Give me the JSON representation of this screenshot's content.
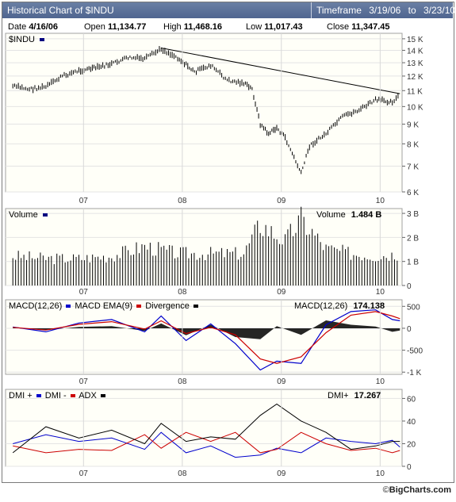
{
  "header": {
    "title": "Historical Chart of $INDU",
    "timeframe_label": "Timeframe",
    "timeframe_start": "3/19/06",
    "timeframe_to": "to",
    "timeframe_end": "3/23/10"
  },
  "info_row": {
    "date_label": "Date",
    "date": "4/16/06",
    "open_label": "Open",
    "open": "11,134.77",
    "high_label": "High",
    "high": "11,468.16",
    "low_label": "Low",
    "low": "11,017.43",
    "close_label": "Close",
    "close": "11,347.45"
  },
  "price_panel": {
    "symbol": "$INDU",
    "symbol_color": "#000080"
  },
  "volume_panel": {
    "label": "Volume",
    "value_label": "Volume",
    "value": "1.484 B"
  },
  "macd_panel": {
    "macd_label": "MACD(12,26)",
    "ema_label": "MACD EMA(9)",
    "div_label": "Divergence",
    "value_label": "MACD(12,26)",
    "value": "174.138"
  },
  "dmi_panel": {
    "plus_label": "DMI +",
    "minus_label": "DMI -",
    "adx_label": "ADX",
    "value_label": "DMI+",
    "value": "17.267"
  },
  "footer": {
    "copyright": "©",
    "brand": "BigCharts.com"
  },
  "colors": {
    "price": "#000000",
    "volume": "#000000",
    "macd": "#0000cc",
    "ema": "#cc0000",
    "divergence": "#000000",
    "dmi_plus": "#0000cc",
    "dmi_minus": "#cc0000",
    "adx": "#000000",
    "trendline": "#000000"
  },
  "chart_data": [
    {
      "type": "line",
      "title": "$INDU",
      "x_ticks": [
        "07",
        "08",
        "09",
        "10"
      ],
      "y_ticks": [
        "6 K",
        "7 K",
        "8 K",
        "9 K",
        "10 K",
        "11 K",
        "12 K",
        "13 K",
        "14 K",
        "15 K"
      ],
      "y_scale": "log",
      "ylim": [
        6000,
        15500
      ],
      "series": [
        {
          "x": [
            "2006-04",
            "2006-06",
            "2006-08",
            "2006-10",
            "2006-12",
            "2007-02",
            "2007-04",
            "2007-06",
            "2007-08",
            "2007-10",
            "2007-12",
            "2008-02",
            "2008-04",
            "2008-06",
            "2008-08",
            "2008-09",
            "2008-10",
            "2008-11",
            "2008-12",
            "2009-01",
            "2009-03",
            "2009-04",
            "2009-06",
            "2009-08",
            "2009-10",
            "2009-12",
            "2010-02",
            "2010-03"
          ],
          "values": [
            11300,
            11100,
            11250,
            12000,
            12400,
            12600,
            12900,
            13400,
            13300,
            14100,
            13400,
            12300,
            12800,
            11700,
            11500,
            11100,
            9000,
            8500,
            8800,
            8300,
            6700,
            7900,
            8500,
            9400,
            9800,
            10400,
            10300,
            10700
          ]
        }
      ],
      "trendline": {
        "from": [
          "2007-10",
          14200
        ],
        "to": [
          "2010-03",
          10800
        ]
      }
    },
    {
      "type": "bar",
      "title": "Volume",
      "x_ticks": [
        "07",
        "08",
        "09",
        "10"
      ],
      "y_ticks": [
        "0",
        "1 B",
        "2 B",
        "3 B"
      ],
      "ylim": [
        0,
        3.2
      ],
      "unit": "B",
      "x": [
        "2006-04",
        "2006-08",
        "2006-12",
        "2007-04",
        "2007-08",
        "2007-12",
        "2008-04",
        "2008-08",
        "2008-10",
        "2009-01",
        "2009-03",
        "2009-06",
        "2009-09",
        "2009-12",
        "2010-03"
      ],
      "values": [
        1.2,
        1.1,
        1.1,
        1.2,
        1.6,
        1.3,
        1.3,
        1.3,
        2.5,
        1.8,
        2.7,
        1.5,
        1.3,
        1.2,
        1.3
      ]
    },
    {
      "type": "line",
      "title": "MACD",
      "x_ticks": [
        "07",
        "08",
        "09",
        "10"
      ],
      "y_ticks": [
        "-1 K",
        "-500",
        "0",
        "500"
      ],
      "ylim": [
        -1050,
        650
      ],
      "x": [
        "2006-04",
        "2006-08",
        "2006-12",
        "2007-04",
        "2007-08",
        "2007-10",
        "2008-01",
        "2008-04",
        "2008-07",
        "2008-10",
        "2008-12",
        "2009-03",
        "2009-06",
        "2009-09",
        "2009-12",
        "2010-02",
        "2010-03"
      ],
      "series": [
        {
          "name": "MACD(12,26)",
          "values": [
            30,
            -80,
            120,
            200,
            -80,
            280,
            -280,
            100,
            -350,
            -950,
            -750,
            -800,
            80,
            380,
            420,
            200,
            170
          ]
        },
        {
          "name": "MACD EMA(9)",
          "values": [
            20,
            -40,
            90,
            150,
            -20,
            170,
            -120,
            20,
            -150,
            -700,
            -800,
            -650,
            -100,
            300,
            380,
            280,
            220
          ]
        },
        {
          "name": "Divergence",
          "values": [
            10,
            -40,
            30,
            50,
            -60,
            110,
            -160,
            80,
            -200,
            -250,
            50,
            -150,
            180,
            80,
            40,
            -80,
            -50
          ]
        }
      ]
    },
    {
      "type": "line",
      "title": "DMI",
      "x_ticks": [
        "07",
        "08",
        "09",
        "10"
      ],
      "y_ticks": [
        "0",
        "20",
        "40",
        "60"
      ],
      "ylim": [
        0,
        68
      ],
      "x": [
        "2006-04",
        "2006-08",
        "2006-12",
        "2007-04",
        "2007-08",
        "2007-10",
        "2008-01",
        "2008-04",
        "2008-07",
        "2008-10",
        "2008-12",
        "2009-03",
        "2009-06",
        "2009-09",
        "2009-12",
        "2010-02",
        "2010-03"
      ],
      "series": [
        {
          "name": "DMI +",
          "values": [
            20,
            28,
            22,
            25,
            15,
            30,
            12,
            18,
            8,
            10,
            16,
            12,
            25,
            22,
            20,
            23,
            17
          ]
        },
        {
          "name": "DMI -",
          "values": [
            18,
            12,
            15,
            14,
            28,
            16,
            30,
            22,
            30,
            12,
            15,
            30,
            20,
            14,
            16,
            12,
            14
          ]
        },
        {
          "name": "ADX",
          "values": [
            12,
            35,
            25,
            32,
            20,
            38,
            22,
            26,
            24,
            45,
            55,
            40,
            30,
            15,
            18,
            22,
            22
          ]
        }
      ]
    }
  ]
}
